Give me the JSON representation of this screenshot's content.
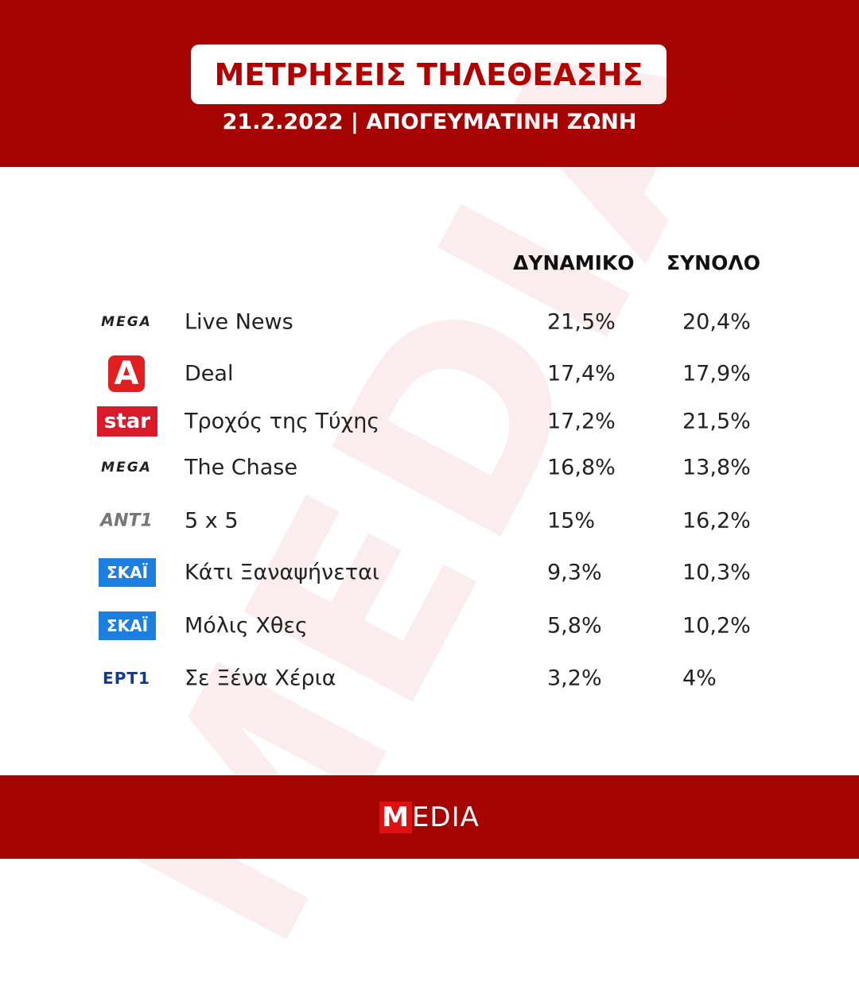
{
  "header": {
    "title": "ΜΕΤΡΗΣΕΙΣ ΤΗΛΕΘΕΑΣΗΣ",
    "subtitle": "21.2.2022 | ΑΠΟΓΕΥΜΑΤΙΝΗ ΖΩΝΗ"
  },
  "watermark": "MEDIA",
  "table": {
    "columns": [
      "ΔΥΝΑΜΙΚΟ",
      "ΣΥΝΟΛΟ"
    ],
    "rows": [
      {
        "channel": "MEGA",
        "show": "Live News",
        "dynamic": "21,5%",
        "total": "20,4%"
      },
      {
        "channel": "A",
        "show": "Deal",
        "dynamic": "17,4%",
        "total": "17,9%"
      },
      {
        "channel": "star",
        "show": "Τροχός της Τύχης",
        "dynamic": "17,2%",
        "total": "21,5%"
      },
      {
        "channel": "MEGA",
        "show": "The Chase",
        "dynamic": "16,8%",
        "total": "13,8%"
      },
      {
        "channel": "ANT1",
        "show": "5 x 5",
        "dynamic": "15%",
        "total": "16,2%"
      },
      {
        "channel": "ΣΚΑΪ",
        "show": "Κάτι Ξαναψήνεται",
        "dynamic": "9,3%",
        "total": "10,3%"
      },
      {
        "channel": "ΣΚΑΪ",
        "show": "Μόλις Χθες",
        "dynamic": "5,8%",
        "total": "10,2%"
      },
      {
        "channel": "ΕΡΤ1",
        "show": "Σε Ξένα Χέρια",
        "dynamic": "3,2%",
        "total": "4%"
      }
    ]
  },
  "footer": {
    "logo": "MEDIA"
  }
}
